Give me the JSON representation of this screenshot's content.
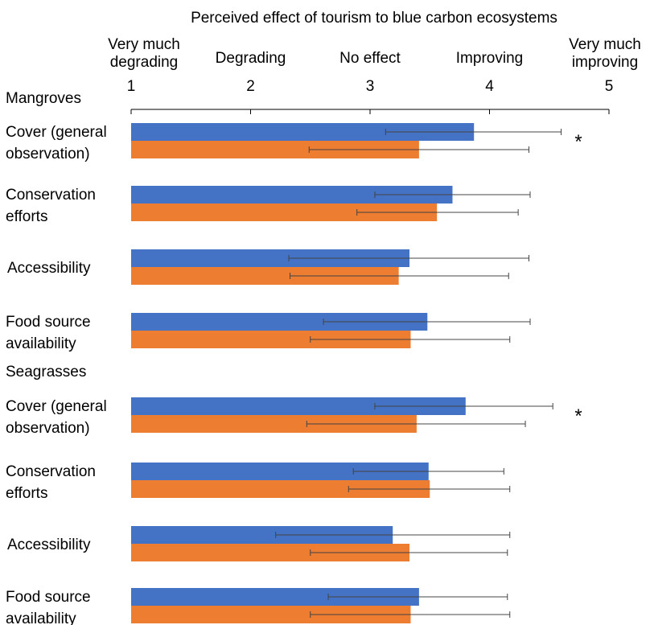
{
  "chart_data": {
    "type": "bar",
    "orientation": "horizontal",
    "title": "Perceived effect of tourism to blue carbon ecosystems",
    "xlim": [
      1,
      5
    ],
    "x_ticks": [
      1,
      2,
      3,
      4,
      5
    ],
    "scale_labels": [
      {
        "value": 1,
        "lines": [
          "Very much",
          "degrading"
        ]
      },
      {
        "value": 2,
        "lines": [
          "Degrading"
        ]
      },
      {
        "value": 3,
        "lines": [
          "No effect"
        ]
      },
      {
        "value": 4,
        "lines": [
          "Improving"
        ]
      },
      {
        "value": 5,
        "lines": [
          "Very much",
          "improving"
        ]
      }
    ],
    "legend": "none",
    "grid": false,
    "colors": [
      "#4472c4",
      "#ed7d31"
    ],
    "significance_marker": "*",
    "groups": [
      {
        "name": "Mangroves",
        "categories": [
          {
            "lines": [
              "Cover (general",
              "observation)"
            ],
            "values": [
              3.87,
              3.41
            ],
            "err_low": [
              3.13,
              2.49
            ],
            "err_high": [
              4.6,
              4.33
            ],
            "significant": true
          },
          {
            "lines": [
              "Conservation",
              "efforts"
            ],
            "values": [
              3.69,
              3.56
            ],
            "err_low": [
              3.04,
              2.89
            ],
            "err_high": [
              4.34,
              4.24
            ],
            "significant": false
          },
          {
            "lines": [
              "Accessibility"
            ],
            "values": [
              3.33,
              3.24
            ],
            "err_low": [
              2.32,
              2.33
            ],
            "err_high": [
              4.33,
              4.16
            ],
            "significant": false
          },
          {
            "lines": [
              "Food source",
              "availability"
            ],
            "values": [
              3.48,
              3.34
            ],
            "err_low": [
              2.61,
              2.5
            ],
            "err_high": [
              4.34,
              4.17
            ],
            "significant": false
          }
        ]
      },
      {
        "name": "Seagrasses",
        "categories": [
          {
            "lines": [
              "Cover (general",
              "observation)"
            ],
            "values": [
              3.8,
              3.39
            ],
            "err_low": [
              3.04,
              2.47
            ],
            "err_high": [
              4.53,
              4.3
            ],
            "significant": true
          },
          {
            "lines": [
              "Conservation",
              "efforts"
            ],
            "values": [
              3.49,
              3.5
            ],
            "err_low": [
              2.86,
              2.82
            ],
            "err_high": [
              4.12,
              4.17
            ],
            "significant": false
          },
          {
            "lines": [
              "Accessibility"
            ],
            "values": [
              3.19,
              3.33
            ],
            "err_low": [
              2.21,
              2.5
            ],
            "err_high": [
              4.17,
              4.15
            ],
            "significant": false
          },
          {
            "lines": [
              "Food source",
              "availability"
            ],
            "values": [
              3.41,
              3.34
            ],
            "err_low": [
              2.65,
              2.5
            ],
            "err_high": [
              4.15,
              4.17
            ],
            "significant": false
          }
        ]
      }
    ]
  }
}
